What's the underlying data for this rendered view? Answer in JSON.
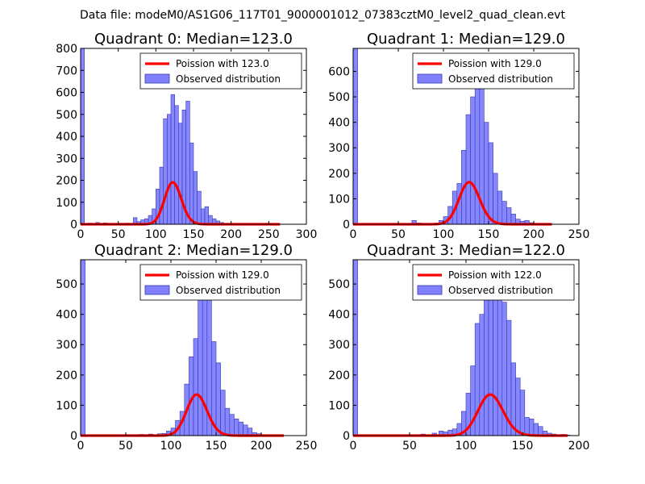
{
  "figure": {
    "suptitle": "Data file: modeM0/AS1G06_117T01_9000001012_07383cztM0_level2_quad_clean.evt"
  },
  "colors": {
    "bar_fill": "#8080ff",
    "bar_edge": "#3838b0",
    "curve": "#ff0000",
    "axes": "#000000"
  },
  "chart_data": [
    {
      "type": "bar",
      "title": "Quadrant 0: Median=123.0",
      "median": 123.0,
      "xlim": [
        0,
        300
      ],
      "ylim": [
        0,
        800
      ],
      "xticks": [
        0,
        50,
        100,
        150,
        200,
        250,
        300
      ],
      "yticks": [
        0,
        100,
        200,
        300,
        400,
        500,
        600,
        700,
        800
      ],
      "bin_width": 5,
      "bins": [
        [
          0,
          800
        ],
        [
          10,
          5
        ],
        [
          20,
          8
        ],
        [
          30,
          6
        ],
        [
          40,
          4
        ],
        [
          50,
          3
        ],
        [
          60,
          5
        ],
        [
          70,
          30
        ],
        [
          75,
          12
        ],
        [
          80,
          20
        ],
        [
          85,
          25
        ],
        [
          90,
          40
        ],
        [
          95,
          70
        ],
        [
          100,
          160
        ],
        [
          105,
          260
        ],
        [
          110,
          480
        ],
        [
          115,
          500
        ],
        [
          120,
          590
        ],
        [
          125,
          540
        ],
        [
          130,
          460
        ],
        [
          135,
          520
        ],
        [
          140,
          560
        ],
        [
          145,
          370
        ],
        [
          150,
          240
        ],
        [
          155,
          150
        ],
        [
          160,
          70
        ],
        [
          165,
          80
        ],
        [
          170,
          40
        ],
        [
          175,
          25
        ],
        [
          180,
          15
        ],
        [
          185,
          8
        ],
        [
          190,
          4
        ],
        [
          200,
          3
        ],
        [
          210,
          3
        ],
        [
          220,
          2
        ],
        [
          240,
          2
        ],
        [
          255,
          2
        ]
      ],
      "curve": {
        "label": "Poission with 123.0",
        "lambda": 123.0,
        "scale": 5300,
        "x_range": [
          0,
          265
        ]
      },
      "legend": [
        "Poission with 123.0",
        "Observed distribution"
      ],
      "legend_loc": "top-right"
    },
    {
      "type": "bar",
      "title": "Quadrant 1: Median=129.0",
      "median": 129.0,
      "xlim": [
        0,
        250
      ],
      "ylim": [
        0,
        690
      ],
      "xticks": [
        0,
        50,
        100,
        150,
        200,
        250
      ],
      "yticks": [
        0,
        100,
        200,
        300,
        400,
        500,
        600
      ],
      "bin_width": 5,
      "bins": [
        [
          0,
          690
        ],
        [
          65,
          15
        ],
        [
          70,
          5
        ],
        [
          85,
          3
        ],
        [
          90,
          5
        ],
        [
          95,
          15
        ],
        [
          100,
          30
        ],
        [
          105,
          70
        ],
        [
          110,
          130
        ],
        [
          115,
          160
        ],
        [
          120,
          290
        ],
        [
          125,
          430
        ],
        [
          130,
          500
        ],
        [
          135,
          650
        ],
        [
          140,
          660
        ],
        [
          145,
          400
        ],
        [
          150,
          320
        ],
        [
          155,
          200
        ],
        [
          160,
          130
        ],
        [
          165,
          90
        ],
        [
          170,
          65
        ],
        [
          175,
          40
        ],
        [
          180,
          20
        ],
        [
          185,
          12
        ],
        [
          190,
          15
        ],
        [
          195,
          6
        ],
        [
          200,
          3
        ],
        [
          210,
          2
        ]
      ],
      "curve": {
        "label": "Poission with 129.0",
        "lambda": 129.0,
        "scale": 4700,
        "x_range": [
          0,
          220
        ]
      },
      "legend": [
        "Poission with 129.0",
        "Observed distribution"
      ],
      "legend_loc": "top-right"
    },
    {
      "type": "bar",
      "title": "Quadrant 2: Median=129.0",
      "median": 129.0,
      "xlim": [
        0,
        250
      ],
      "ylim": [
        0,
        580
      ],
      "xticks": [
        0,
        50,
        100,
        150,
        200,
        250
      ],
      "yticks": [
        0,
        100,
        200,
        300,
        400,
        500
      ],
      "bin_width": 5,
      "bins": [
        [
          0,
          580
        ],
        [
          65,
          4
        ],
        [
          75,
          5
        ],
        [
          85,
          6
        ],
        [
          90,
          7
        ],
        [
          95,
          15
        ],
        [
          100,
          25
        ],
        [
          105,
          50
        ],
        [
          110,
          80
        ],
        [
          115,
          170
        ],
        [
          120,
          260
        ],
        [
          125,
          320
        ],
        [
          130,
          490
        ],
        [
          135,
          540
        ],
        [
          140,
          500
        ],
        [
          145,
          310
        ],
        [
          150,
          240
        ],
        [
          155,
          150
        ],
        [
          160,
          90
        ],
        [
          165,
          70
        ],
        [
          170,
          55
        ],
        [
          175,
          45
        ],
        [
          180,
          35
        ],
        [
          185,
          25
        ],
        [
          190,
          10
        ],
        [
          195,
          6
        ],
        [
          200,
          3
        ]
      ],
      "curve": {
        "label": "Poission with 129.0",
        "lambda": 129.0,
        "scale": 3850,
        "x_range": [
          0,
          225
        ]
      },
      "legend": [
        "Poission with 129.0",
        "Observed distribution"
      ],
      "legend_loc": "top-right"
    },
    {
      "type": "bar",
      "title": "Quadrant 3: Median=122.0",
      "median": 122.0,
      "xlim": [
        0,
        200
      ],
      "ylim": [
        0,
        580
      ],
      "xticks": [
        0,
        50,
        100,
        150,
        200
      ],
      "yticks": [
        0,
        100,
        200,
        300,
        400,
        500
      ],
      "bin_width": 4,
      "bins": [
        [
          0,
          580
        ],
        [
          60,
          5
        ],
        [
          65,
          3
        ],
        [
          70,
          8
        ],
        [
          76,
          15
        ],
        [
          80,
          12
        ],
        [
          84,
          18
        ],
        [
          88,
          22
        ],
        [
          92,
          40
        ],
        [
          96,
          80
        ],
        [
          100,
          140
        ],
        [
          104,
          230
        ],
        [
          108,
          370
        ],
        [
          112,
          400
        ],
        [
          116,
          490
        ],
        [
          120,
          550
        ],
        [
          124,
          500
        ],
        [
          128,
          550
        ],
        [
          132,
          440
        ],
        [
          136,
          380
        ],
        [
          140,
          240
        ],
        [
          144,
          190
        ],
        [
          148,
          150
        ],
        [
          152,
          60
        ],
        [
          156,
          55
        ],
        [
          160,
          40
        ],
        [
          164,
          30
        ],
        [
          168,
          15
        ],
        [
          172,
          8
        ],
        [
          176,
          5
        ],
        [
          184,
          4
        ],
        [
          188,
          2
        ]
      ],
      "curve": {
        "label": "Poission with 122.0",
        "lambda": 122.0,
        "scale": 3750,
        "x_range": [
          0,
          190
        ]
      },
      "legend": [
        "Poission with 122.0",
        "Observed distribution"
      ],
      "legend_loc": "top-right"
    }
  ]
}
